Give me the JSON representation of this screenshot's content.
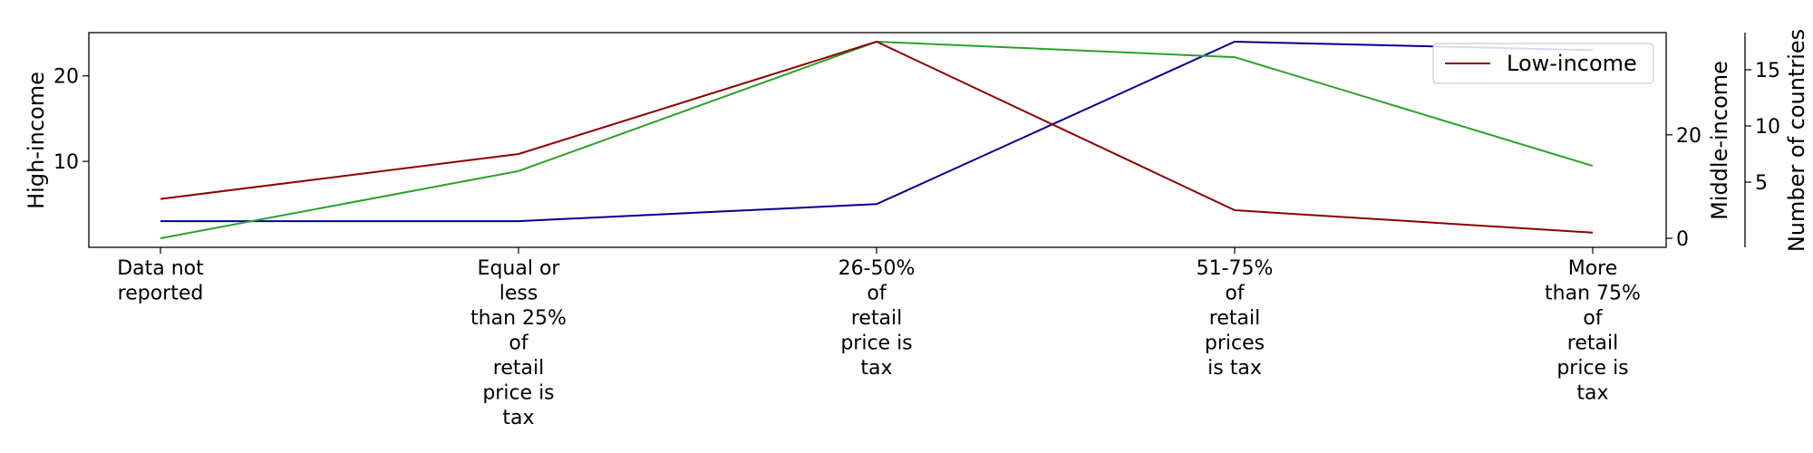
{
  "chart_data": {
    "type": "line",
    "categories": [
      "Data not\nreported",
      "Equal or\nless\nthan 25%\nof\nretail\nprice is\ntax",
      "26-50%\nof\nretail\nprice is\ntax",
      "51-75%\nof\nretail\nprices\nis tax",
      "More\nthan 75%\nof\nretail\nprice is\ntax"
    ],
    "series": [
      {
        "name": "",
        "axis": "left",
        "color": "#00008b",
        "values": [
          3,
          3,
          5,
          24,
          23
        ]
      },
      {
        "name": "",
        "axis": "right",
        "color": "#2ca02c",
        "values": [
          0,
          13,
          38,
          35,
          14
        ]
      },
      {
        "name": "Low-income",
        "axis": "outer",
        "color": "#8b0000",
        "values": [
          3.5,
          7.5,
          17.5,
          2.5,
          0.5
        ]
      }
    ],
    "axes": {
      "left": {
        "label": "High-income",
        "ylim": [
          1,
          24
        ],
        "ticks": [
          10,
          20
        ]
      },
      "right": {
        "label": "Middle-income",
        "ylim": [
          0,
          38
        ],
        "ticks": [
          0,
          20
        ]
      },
      "outer": {
        "label": "Number of countries",
        "ylim": [
          0,
          17.5
        ],
        "ticks": [
          5,
          10,
          15
        ]
      }
    },
    "legend": {
      "placement": "top-right",
      "entries": [
        "Low-income"
      ]
    },
    "grid": false
  }
}
